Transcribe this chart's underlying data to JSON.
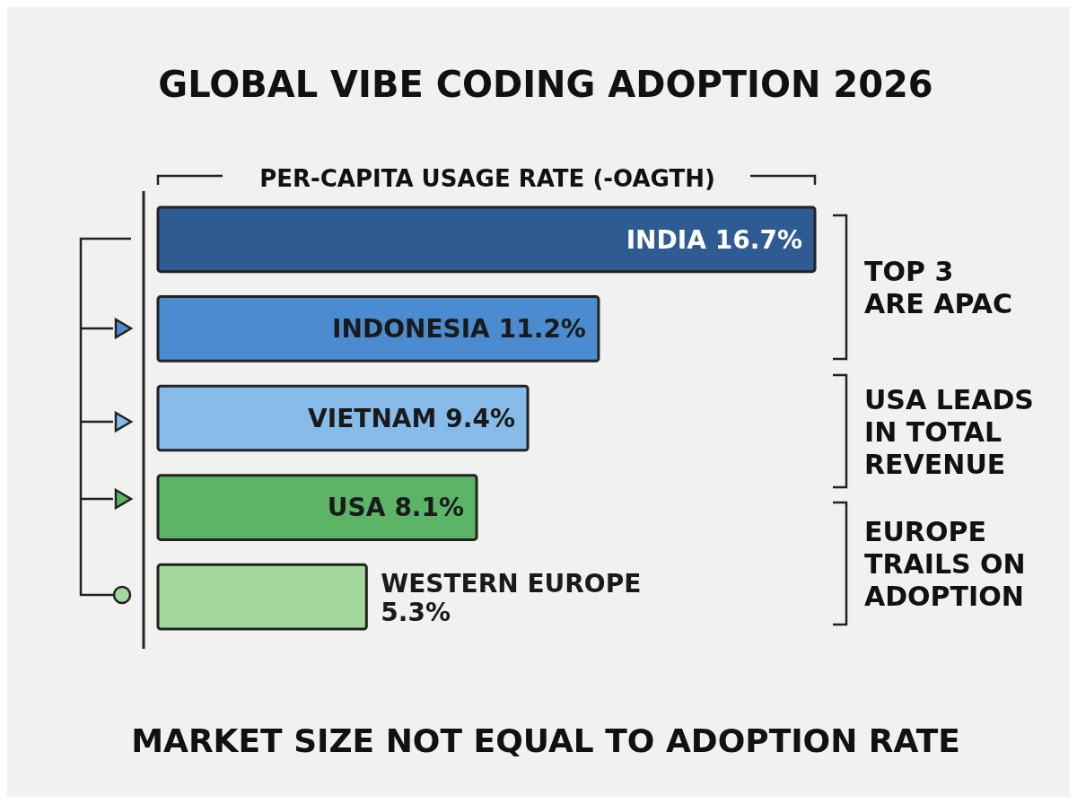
{
  "chart_data": {
    "type": "bar",
    "orientation": "horizontal",
    "title": "GLOBAL VIBE CODING ADOPTION 2026",
    "xlabel": "PER-CAPITA USAGE RATE (-OAGTH)",
    "categories": [
      "INDIA",
      "INDONESIA",
      "VIETNAM",
      "USA",
      "WESTERN EUROPE"
    ],
    "values": [
      16.7,
      11.2,
      9.4,
      8.1,
      5.3
    ],
    "value_labels": [
      "16.7%",
      "11.2%",
      "9.4%",
      "8.1%",
      "5.3%"
    ],
    "colors": [
      "#2f5b93",
      "#4a8ccf",
      "#86bbea",
      "#5cb467",
      "#a3d89d"
    ],
    "annotations": [
      "TOP 3 ARE APAC",
      "USA LEADS IN TOTAL REVENUE",
      "EUROPE TRAILS ON ADOPTION",
      "MARKET SIZE NOT EQUAL TO ADOPTION RATE"
    ]
  }
}
